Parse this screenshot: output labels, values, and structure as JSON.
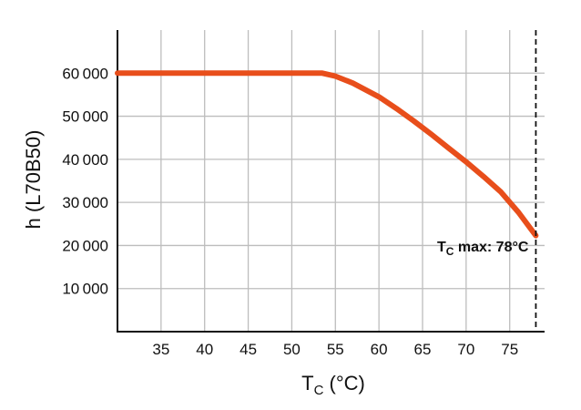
{
  "chart_data": {
    "type": "line",
    "x_ticks": [
      35,
      40,
      45,
      50,
      55,
      60,
      65,
      70,
      75
    ],
    "y_ticks": [
      10000,
      20000,
      30000,
      40000,
      50000,
      60000
    ],
    "x_tick_labels": [
      "35",
      "40",
      "45",
      "50",
      "55",
      "60",
      "65",
      "70",
      "75"
    ],
    "y_tick_labels": [
      "10 000",
      "20 000",
      "30 000",
      "40 000",
      "50 000",
      "60 000"
    ],
    "xlim": [
      30,
      79
    ],
    "ylim": [
      0,
      70000
    ],
    "xlabel_main": "T",
    "xlabel_sub": "C",
    "xlabel_rest": " (°C)",
    "ylabel": "h (L70B50)",
    "grid": true,
    "series": [
      {
        "color": "#e84e1b",
        "x": [
          30,
          53.5,
          55,
          57,
          60,
          62,
          64,
          66,
          68,
          70,
          72,
          74,
          76,
          78
        ],
        "y": [
          60000,
          60000,
          59300,
          57700,
          54500,
          51800,
          48900,
          45800,
          42600,
          39400,
          36000,
          32400,
          27700,
          22300
        ]
      }
    ],
    "annotation": {
      "label_main": "T",
      "label_sub": "C",
      "label_rest": " max: 78°C",
      "x": 78
    }
  }
}
